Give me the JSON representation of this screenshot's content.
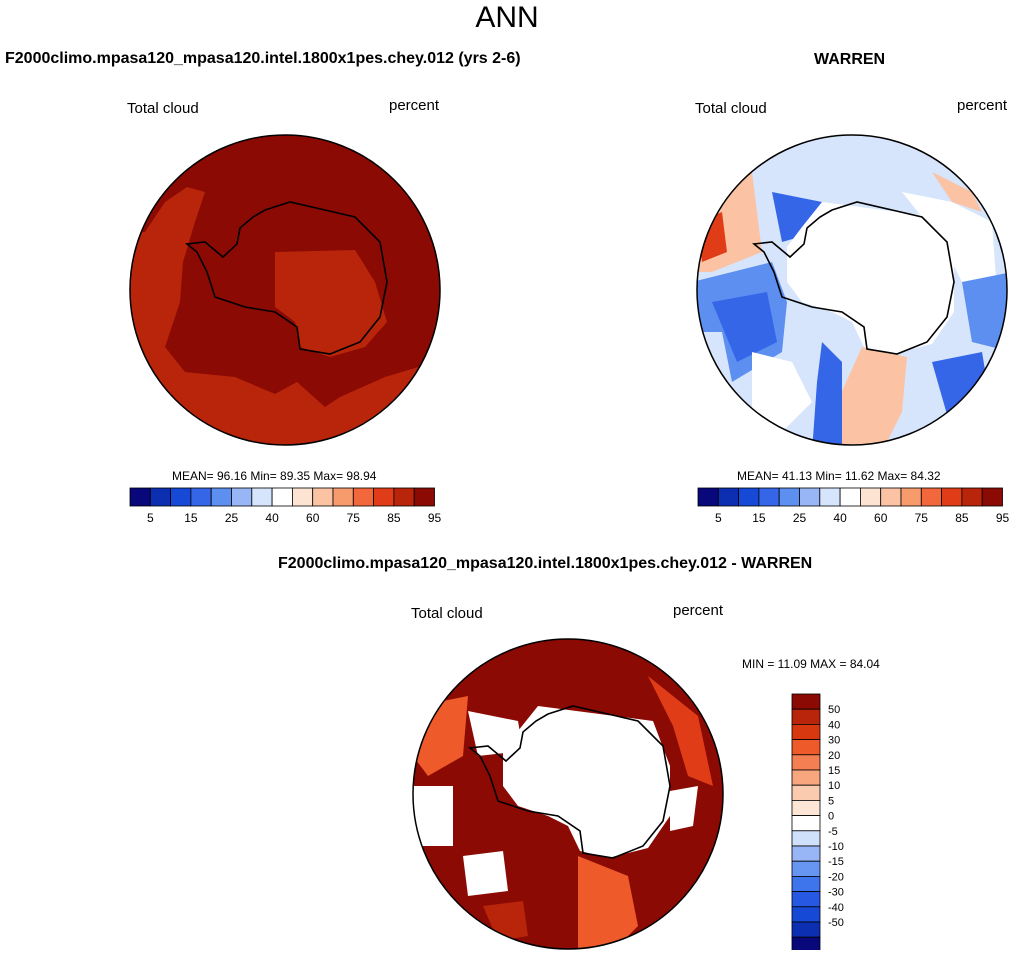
{
  "title": "ANN",
  "panels": {
    "model": {
      "header": "F2000climo.mpasa120_mpasa120.intel.1800x1pes.chey.012 (yrs 2-6)",
      "left_label": "Total cloud",
      "right_label": "percent",
      "stats": "MEAN=  96.16  Min=  89.35  Max=  98.94"
    },
    "obs": {
      "header": "WARREN",
      "left_label": "Total cloud",
      "right_label": "percent",
      "stats": "MEAN=  41.13  Min=  11.62  Max=  84.32"
    },
    "diff": {
      "header": "F2000climo.mpasa120_mpasa120.intel.1800x1pes.chey.012 - WARREN",
      "left_label": "Total cloud",
      "right_label": "percent",
      "stats": "MIN = 11.09 MAX = 84.04"
    }
  },
  "colorbar_main": {
    "colors": [
      "#08087a",
      "#0c2eb0",
      "#1649d6",
      "#3566e8",
      "#5d8ff0",
      "#98b6f5",
      "#d6e5fb",
      "#ffffff",
      "#fde4d2",
      "#fbc3a4",
      "#f79a6c",
      "#f2673c",
      "#df3c17",
      "#b8250b",
      "#8b0a04"
    ],
    "tick_labels": [
      "5",
      "15",
      "25",
      "40",
      "60",
      "75",
      "85",
      "95"
    ]
  },
  "colorbar_diff": {
    "colors": [
      "#08087a",
      "#0c2eb0",
      "#1649d6",
      "#2658e3",
      "#3e74ec",
      "#6796f2",
      "#98b6f5",
      "#cfe0fb",
      "#ffffff",
      "#fde6d6",
      "#fbcbb0",
      "#f8a67e",
      "#f47f52",
      "#ee5a2a",
      "#d8380f",
      "#b8250b",
      "#8b0a04"
    ],
    "tick_labels": [
      "-50",
      "-40",
      "-30",
      "-20",
      "-15",
      "-10",
      "-5",
      "0",
      "5",
      "10",
      "15",
      "20",
      "30",
      "40",
      "50"
    ]
  }
}
